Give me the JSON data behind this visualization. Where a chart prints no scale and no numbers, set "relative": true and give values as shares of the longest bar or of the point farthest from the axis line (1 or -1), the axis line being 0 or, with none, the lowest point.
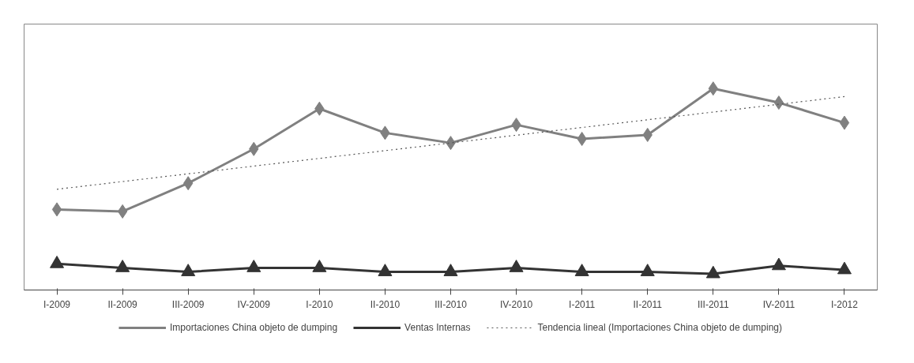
{
  "chart_data": {
    "type": "line",
    "relative": true,
    "categories": [
      "I-2009",
      "II-2009",
      "III-2009",
      "IV-2009",
      "I-2010",
      "II-2010",
      "III-2010",
      "IV-2010",
      "I-2011",
      "II-2011",
      "III-2011",
      "IV-2011",
      "I-2012"
    ],
    "series": [
      {
        "name": "Importaciones China objeto de dumping",
        "color": "#808080",
        "marker": "diamond",
        "line_style": "solid",
        "values": [
          0.4,
          0.39,
          0.53,
          0.7,
          0.9,
          0.78,
          0.73,
          0.82,
          0.75,
          0.77,
          1.0,
          0.93,
          0.83
        ]
      },
      {
        "name": "Ventas Internas",
        "color": "#333333",
        "marker": "triangle",
        "line_style": "solid",
        "values": [
          0.13,
          0.11,
          0.09,
          0.11,
          0.11,
          0.09,
          0.09,
          0.11,
          0.09,
          0.09,
          0.08,
          0.12,
          0.1
        ]
      },
      {
        "name": "Tendencia lineal (Importaciones China objeto de dumping)",
        "color": "#555555",
        "marker": "none",
        "line_style": "dotted",
        "x": [
          "I-2009",
          "I-2012"
        ],
        "values": [
          0.5,
          0.96
        ]
      }
    ],
    "legend": "bottom"
  }
}
